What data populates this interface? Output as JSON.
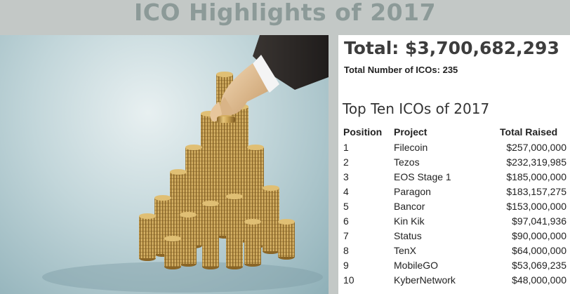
{
  "title": "ICO Highlights of 2017",
  "summary": {
    "total": "Total: $3,700,682,293",
    "count": "Total Number of ICOs: 235"
  },
  "top_ten": {
    "heading": "Top Ten ICOs of 2017",
    "columns": [
      "Position",
      "Project",
      "Total Raised"
    ],
    "rows": [
      {
        "position": "1",
        "project": "Filecoin",
        "raised": "$257,000,000"
      },
      {
        "position": "2",
        "project": "Tezos",
        "raised": "$232,319,985"
      },
      {
        "position": "3",
        "project": "EOS Stage 1",
        "raised": "$185,000,000"
      },
      {
        "position": "4",
        "project": "Paragon",
        "raised": "$183,157,275"
      },
      {
        "position": "5",
        "project": "Bancor",
        "raised": "$153,000,000"
      },
      {
        "position": "6",
        "project": "Kin Kik",
        "raised": "$97,041,936"
      },
      {
        "position": "7",
        "project": "Status",
        "raised": "$90,000,000"
      },
      {
        "position": "8",
        "project": "TenX",
        "raised": "$64,000,000"
      },
      {
        "position": "9",
        "project": "MobileGO",
        "raised": "$53,069,235"
      },
      {
        "position": "10",
        "project": "KyberNetwork",
        "raised": "$48,000,000"
      }
    ]
  },
  "image": {
    "subject": "hand-stacking-gold-coins-icon",
    "colors": {
      "background": "#b9d0d5",
      "coin": "#c9a455",
      "coin_dark": "#9a7430",
      "sleeve": "#2e2a28",
      "skin": "#e2c29a"
    }
  }
}
